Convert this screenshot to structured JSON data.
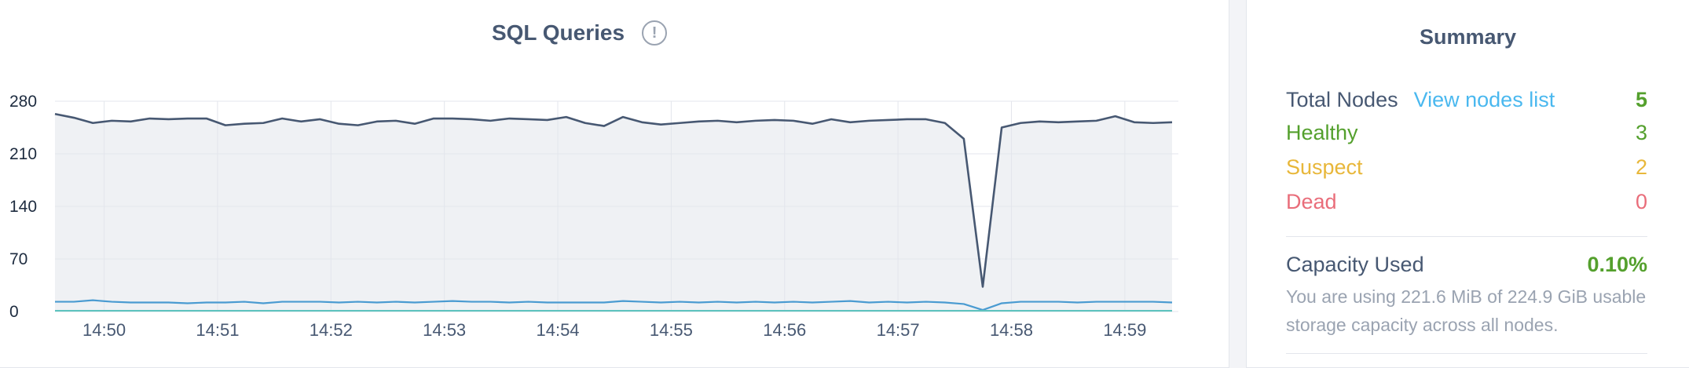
{
  "chart_panel": {
    "title": "SQL Queries",
    "info_icon": "info-circle-icon"
  },
  "chart_data": {
    "type": "line",
    "title": "SQL Queries",
    "xlabel": "",
    "ylabel": "",
    "ylim": [
      0,
      280
    ],
    "yticks": [
      0,
      70,
      140,
      210,
      280
    ],
    "xticks": [
      "14:50",
      "14:51",
      "14:52",
      "14:53",
      "14:54",
      "14:55",
      "14:56",
      "14:57",
      "14:58",
      "14:59"
    ],
    "x_start": "14:49:34",
    "x_end": "14:59:25",
    "grid": true,
    "colors": {
      "series_top": "#475872",
      "series_bottom": "#4a9bd1",
      "series_base": "#5fc3bf",
      "area_fill": "#eff1f4",
      "grid": "#e3e6ec"
    },
    "series": [
      {
        "values": [
          263,
          258,
          251,
          254,
          253,
          257,
          256,
          257,
          257,
          248,
          250,
          251,
          257,
          253,
          256,
          250,
          248,
          253,
          254,
          250,
          257,
          257,
          256,
          254,
          257,
          256,
          255,
          259,
          251,
          247,
          259,
          252,
          249,
          251,
          253,
          254,
          252,
          254,
          255,
          254,
          250,
          256,
          252,
          254,
          255,
          256,
          256,
          251,
          230,
          33,
          245,
          251,
          253,
          252,
          253,
          254,
          260,
          252,
          251,
          252
        ]
      },
      {
        "values": [
          13,
          13,
          15,
          13,
          12,
          12,
          12,
          11,
          12,
          12,
          13,
          11,
          13,
          13,
          13,
          12,
          13,
          12,
          13,
          12,
          13,
          14,
          13,
          13,
          12,
          13,
          12,
          12,
          12,
          12,
          14,
          13,
          12,
          13,
          12,
          13,
          12,
          13,
          12,
          13,
          12,
          13,
          14,
          12,
          13,
          12,
          13,
          12,
          10,
          2,
          11,
          13,
          13,
          13,
          12,
          13,
          13,
          13,
          13,
          12
        ]
      },
      {
        "values": [
          1,
          1,
          1,
          1,
          1,
          1,
          1,
          1,
          1,
          1,
          1,
          1,
          1,
          1,
          1,
          1,
          1,
          1,
          1,
          1,
          1,
          1,
          1,
          1,
          1,
          1,
          1,
          1,
          1,
          1,
          1,
          1,
          1,
          1,
          1,
          1,
          1,
          1,
          1,
          1,
          1,
          1,
          1,
          1,
          1,
          1,
          1,
          1,
          1,
          1,
          1,
          1,
          1,
          1,
          1,
          1,
          1,
          1,
          1,
          1
        ]
      }
    ]
  },
  "summary": {
    "title": "Summary",
    "total_nodes_label": "Total Nodes",
    "view_nodes_link": "View nodes list",
    "total_nodes_value": "5",
    "healthy_label": "Healthy",
    "healthy_value": "3",
    "suspect_label": "Suspect",
    "suspect_value": "2",
    "dead_label": "Dead",
    "dead_value": "0",
    "capacity_label": "Capacity Used",
    "capacity_value": "0.10%",
    "capacity_desc": "You are using 221.6 MiB of 224.9 GiB usable storage capacity across all nodes.",
    "colors": {
      "default": "#475872",
      "healthy": "#54a02d",
      "suspect": "#e8b73a",
      "dead": "#e96d7a",
      "link": "#4ab8ef",
      "muted": "#9aa3b1"
    }
  }
}
